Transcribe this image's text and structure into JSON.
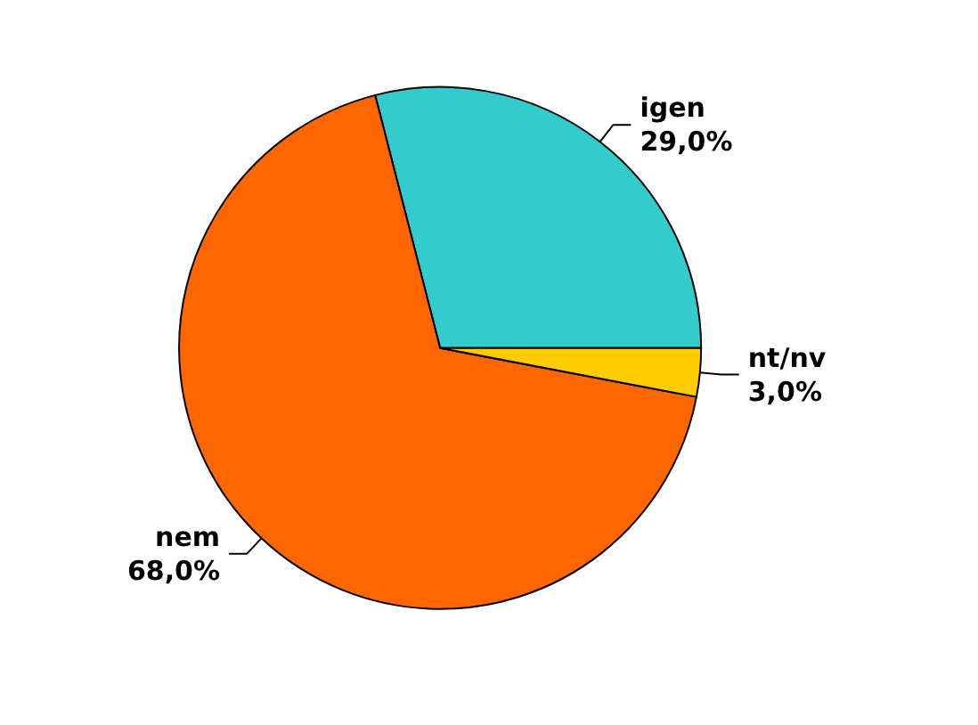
{
  "chart_data": {
    "type": "pie",
    "categories": [
      "igen",
      "nem",
      "nt/nv"
    ],
    "values": [
      29,
      68,
      3
    ],
    "colors": [
      "#33cccc",
      "#ff6600",
      "#ffcc00"
    ],
    "value_labels": [
      "29,0%",
      "68,0%",
      "3,0%"
    ],
    "legend": false
  }
}
